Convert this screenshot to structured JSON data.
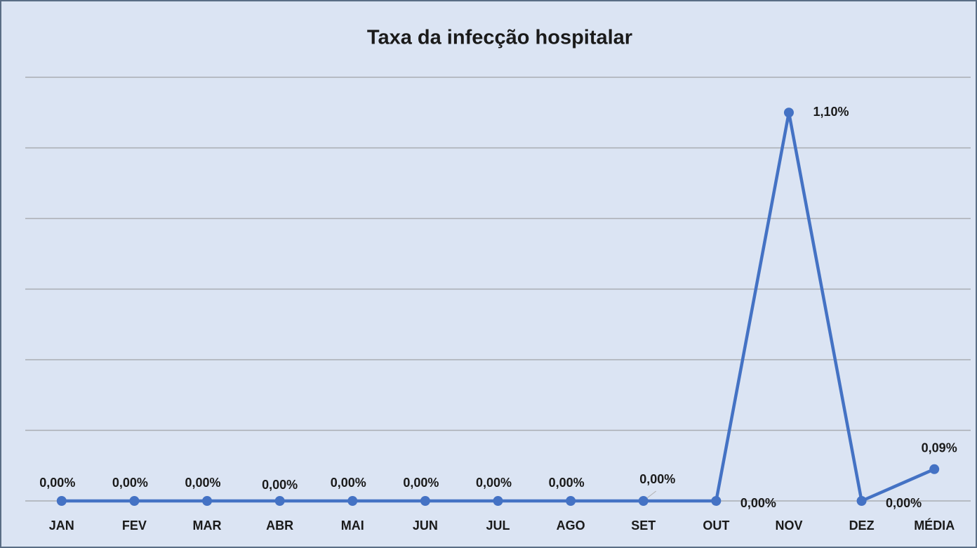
{
  "chart_data": {
    "type": "line",
    "title": "Taxa da infecção hospitalar",
    "categories": [
      "JAN",
      "FEV",
      "MAR",
      "ABR",
      "MAI",
      "JUN",
      "JUL",
      "AGO",
      "SET",
      "OUT",
      "NOV",
      "DEZ",
      "MÉDIA"
    ],
    "series": [
      {
        "color": "#4472c4",
        "values": [
          0,
          0,
          0,
          0,
          0,
          0,
          0,
          0,
          0,
          0,
          1.1,
          0,
          0.09
        ],
        "value_labels": [
          "0,00%",
          "0,00%",
          "0,00%",
          "0,00%",
          "0,00%",
          "0,00%",
          "0,00%",
          "0,00%",
          "0,00%",
          "0,00%",
          "1,10%",
          "0,00%",
          "0,09%"
        ]
      }
    ],
    "ylim": [
      0,
      1.2
    ],
    "yticks": [
      0,
      0.2,
      0.4,
      0.6,
      0.8,
      1,
      1.2
    ],
    "grid": true
  }
}
